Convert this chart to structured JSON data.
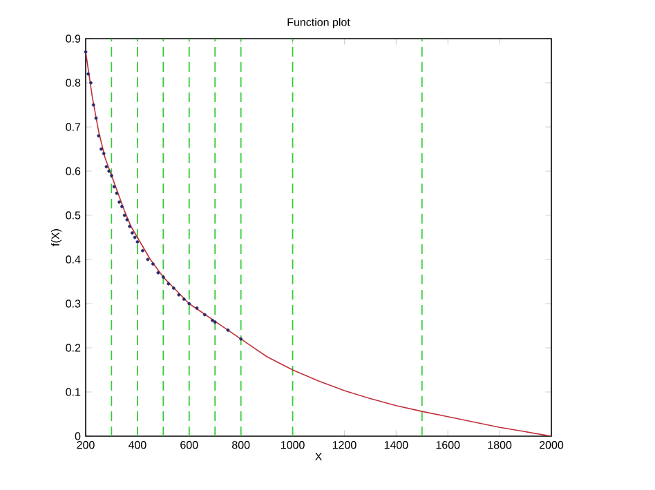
{
  "chart_data": {
    "type": "line",
    "title": "Function plot",
    "xlabel": "X",
    "ylabel": "f(X)",
    "xlim": [
      200,
      2000
    ],
    "ylim": [
      0,
      0.9
    ],
    "xticks": [
      200,
      400,
      600,
      800,
      1000,
      1200,
      1400,
      1600,
      1800,
      2000
    ],
    "yticks": [
      0,
      0.1,
      0.2,
      0.3,
      0.4,
      0.5,
      0.6,
      0.7,
      0.8,
      0.9
    ],
    "grid": false,
    "series": [
      {
        "color": "#c0303a",
        "marker": "none",
        "line_style": "solid",
        "x": [
          200,
          225,
          250,
          275,
          300,
          325,
          350,
          375,
          400,
          450,
          500,
          550,
          600,
          650,
          700,
          750,
          800,
          900,
          1000,
          1100,
          1200,
          1300,
          1400,
          1500,
          1600,
          1700,
          1800,
          1900,
          2000
        ],
        "values": [
          0.87,
          0.77,
          0.69,
          0.63,
          0.59,
          0.55,
          0.51,
          0.475,
          0.45,
          0.4,
          0.36,
          0.33,
          0.3,
          0.28,
          0.26,
          0.24,
          0.22,
          0.18,
          0.15,
          0.125,
          0.103,
          0.085,
          0.069,
          0.056,
          0.044,
          0.032,
          0.02,
          0.01,
          0.0
        ]
      },
      {
        "type": "scatter",
        "color": "#2a2a6a",
        "marker": "circle",
        "x": [
          200,
          210,
          220,
          230,
          240,
          250,
          260,
          270,
          280,
          290,
          300,
          310,
          320,
          330,
          340,
          350,
          360,
          370,
          380,
          390,
          400,
          420,
          440,
          460,
          480,
          500,
          520,
          540,
          560,
          580,
          600,
          630,
          660,
          690,
          700,
          750,
          800
        ],
        "values": [
          0.87,
          0.82,
          0.8,
          0.75,
          0.72,
          0.68,
          0.65,
          0.64,
          0.61,
          0.6,
          0.59,
          0.565,
          0.55,
          0.53,
          0.52,
          0.5,
          0.49,
          0.475,
          0.46,
          0.45,
          0.44,
          0.42,
          0.4,
          0.39,
          0.37,
          0.36,
          0.345,
          0.335,
          0.32,
          0.31,
          0.3,
          0.29,
          0.275,
          0.262,
          0.258,
          0.24,
          0.22
        ]
      }
    ],
    "ref_lines": [
      {
        "axis": "x",
        "value": 300,
        "color": "#33cc33",
        "line_style": "dashed"
      },
      {
        "axis": "x",
        "value": 400,
        "color": "#33cc33",
        "line_style": "dashed"
      },
      {
        "axis": "x",
        "value": 500,
        "color": "#33cc33",
        "line_style": "dashed"
      },
      {
        "axis": "x",
        "value": 600,
        "color": "#33cc33",
        "line_style": "dashed"
      },
      {
        "axis": "x",
        "value": 700,
        "color": "#33cc33",
        "line_style": "dashed"
      },
      {
        "axis": "x",
        "value": 800,
        "color": "#33cc33",
        "line_style": "dashed"
      },
      {
        "axis": "x",
        "value": 1000,
        "color": "#33cc33",
        "line_style": "dashed"
      },
      {
        "axis": "x",
        "value": 1500,
        "color": "#33cc33",
        "line_style": "dashed"
      }
    ]
  }
}
